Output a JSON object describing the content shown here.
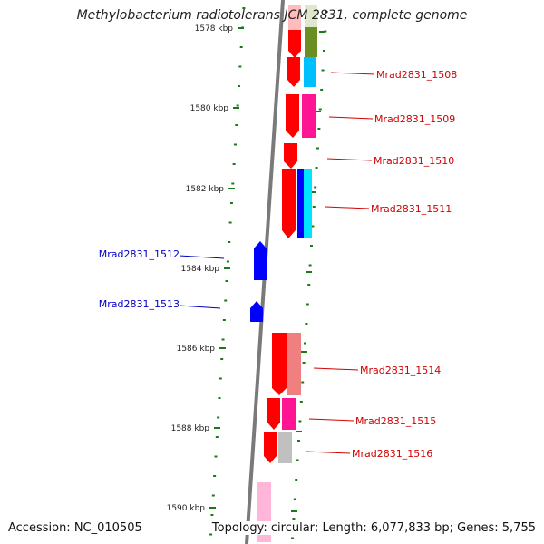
{
  "title": "Methylobacterium radiotolerans JCM 2831, complete genome",
  "footer": {
    "accession": "Accession: NC_010505",
    "summary": "Topology: circular; Length: 6,077,833 bp; Genes: 5,755"
  },
  "colors": {
    "axis": "#7a7a7a",
    "tick": "#1a7a1a",
    "forward_label": "#d40000",
    "reverse_label": "#0000c8"
  },
  "ticks": [
    {
      "label": "1578 kbp"
    },
    {
      "label": "1580 kbp"
    },
    {
      "label": "1582 kbp"
    },
    {
      "label": "1584 kbp"
    },
    {
      "label": "1586 kbp"
    },
    {
      "label": "1588 kbp"
    },
    {
      "label": "1590 kbp"
    }
  ],
  "forward_labels": [
    {
      "text": "Mrad2831_1508"
    },
    {
      "text": "Mrad2831_1509"
    },
    {
      "text": "Mrad2831_1510"
    },
    {
      "text": "Mrad2831_1511"
    },
    {
      "text": "Mrad2831_1514"
    },
    {
      "text": "Mrad2831_1515"
    },
    {
      "text": "Mrad2831_1516"
    }
  ],
  "reverse_labels": [
    {
      "text": "Mrad2831_1512"
    },
    {
      "text": "Mrad2831_1513"
    }
  ]
}
